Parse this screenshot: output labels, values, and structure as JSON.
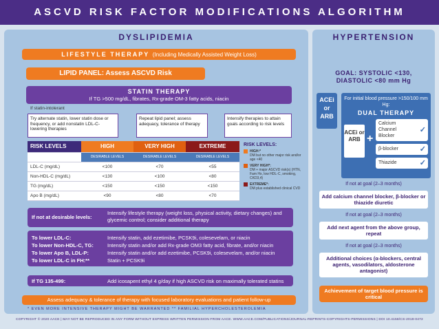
{
  "title": "ASCVD RISK FACTOR MODIFICATIONS ALGORITHM",
  "dys": {
    "title": "DYSLIPIDEMIA",
    "lifestyle": "LIFESTYLE THERAPY",
    "lifestyle_sub": "(Including Medically Assisted Weight Loss)",
    "lipid_panel": "LIPID PANEL: Assess ASCVD Risk",
    "statin_title": "STATIN THERAPY",
    "statin_sub": "If TG >500 mg/dL, fibrates, Rx-grade OM-3 fatty acids, niacin",
    "if_intolerant": "If statin-intolerant",
    "opt1": "Try alternate statin, lower statin dose or frequency, or add nonstatin LDL-C- lowering therapies",
    "opt2": "Repeat lipid panel; assess adequacy, tolerance of therapy",
    "opt3": "Intensify therapies to attain goals according to risk levels",
    "risk_levels": "RISK LEVELS",
    "levels": [
      "HIGH",
      "VERY HIGH",
      "EXTREME"
    ],
    "desirable": "DESIRABLE LEVELS",
    "rows": [
      {
        "label": "LDL-C (mg/dL)",
        "v": [
          "<100",
          "<70",
          "<55"
        ]
      },
      {
        "label": "Non-HDL-C (mg/dL)",
        "v": [
          "<130",
          "<100",
          "<80"
        ]
      },
      {
        "label": "TG (mg/dL)",
        "v": [
          "<150",
          "<150",
          "<150"
        ]
      },
      {
        "label": "Apo B (mg/dL)",
        "v": [
          "<90",
          "<80",
          "<70"
        ]
      }
    ],
    "legend_title": "RISK LEVELS:",
    "legend": [
      {
        "name": "HIGH:*",
        "desc": "DM but no other major risk and/or age <40",
        "color": "#ef7b21"
      },
      {
        "name": "VERY HIGH*:",
        "desc": "DM + major ASCVD risk(s) (HTN, Fam Hx, low HDL-C, smoking, CKD3,4)",
        "color": "#ef7b21"
      },
      {
        "name": "EXTREME*:",
        "desc": "DM plus established clinical CVD",
        "color": "#8b1a1a"
      }
    ],
    "not_goal_label": "If not at desirable levels:",
    "not_goal_text": "Intensify lifestyle therapy (weight loss, physical activity, dietary changes) and glycemic control; consider additional therapy",
    "lower_labels": [
      "To lower LDL-C:",
      "To lower Non-HDL-C, TG:",
      "To lower Apo B, LDL-P:",
      "To lower LDL-C in FH:**"
    ],
    "lower_texts": [
      "Intensify statin, add ezetimibe, PCSK9i, colesevelam, or niacin",
      "Intensify statin and/or add Rx-grade OM3 fatty acid, fibrate, and/or niacin",
      "Intensify statin and/or add ezetimibe, PCSK9i, colesevelam, and/or niacin",
      "Statin + PCSK9i"
    ],
    "tg_label": "If TG 135-499:",
    "tg_text": "Add icosapent ethyl 4 g/day if high ASCVD risk on maximally tolerated statins",
    "assess": "Assess adequacy & tolerance of therapy with focused laboratory evaluations and patient follow-up",
    "footnote": "*  EVEN MORE INTENSIVE THERAPY MIGHT BE WARRANTED     **  FAMILIAL HYPERCHOLESTEROLEMIA"
  },
  "hyp": {
    "title": "HYPERTENSION",
    "goal": "GOAL: SYSTOLIC <130, DIASTOLIC <80 mm Hg",
    "acei": "ACEi or ARB",
    "initial": "For initial blood pressure >150/100 mm Hg:",
    "dual": "DUAL THERAPY",
    "plus": "+",
    "options": [
      "Calcium Channel Blocker",
      "β-blocker",
      "Thiazide"
    ],
    "check": "✓",
    "not_goal": "If not at goal (2–3 months)",
    "step1": "Add calcium channel blocker, β-blocker or thiazide diuretic",
    "step2": "Add next agent from the above group, repeat",
    "step3": "Additional choices (α-blockers, central agents, vasodilators, aldosterone antagonist)",
    "achieve": "Achievement of target blood pressure is critical"
  },
  "copyright": "COPYRIGHT © 2020 AACE | MAY NOT BE REPRODUCED IN ANY FORM WITHOUT EXPRESS WRITTEN PERMISSION FROM AACE. WWW.AACE.COM/PUBLICATIONS/JOURNAL-REPRINTS-COPYRIGHTS-PERMISSIONS | DOI 10.4158/CS-2019-0472"
}
